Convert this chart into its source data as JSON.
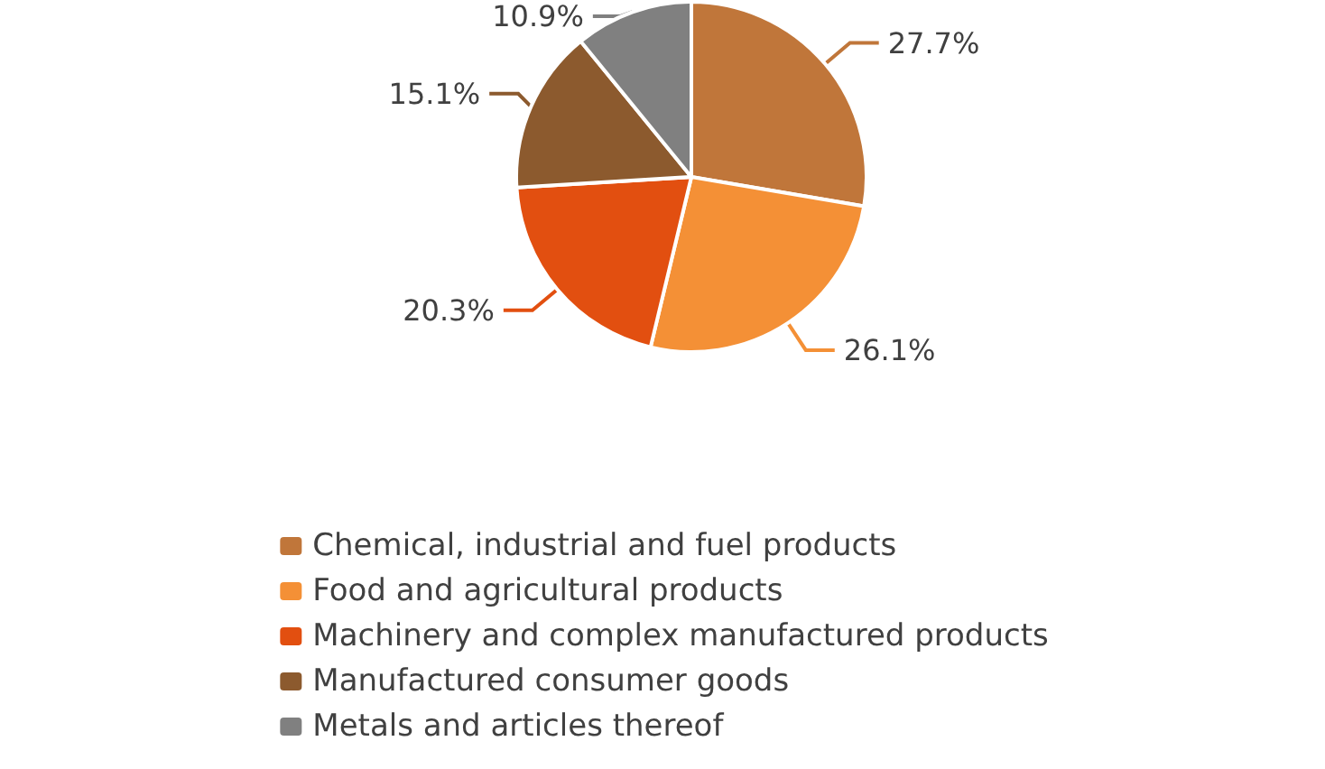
{
  "chart_data": {
    "type": "pie",
    "categories": [
      "Chemical, industrial and fuel products",
      "Food and agricultural products",
      "Machinery and complex manufactured products",
      "Manufactured consumer goods",
      "Metals and articles thereof"
    ],
    "values": [
      27.7,
      26.1,
      20.3,
      15.1,
      10.9
    ],
    "value_labels": [
      "27.7%",
      "26.1%",
      "20.3%",
      "15.1%",
      "10.9%"
    ],
    "colors": [
      "#c0763a",
      "#f49036",
      "#e24f10",
      "#8c5a2e",
      "#808080"
    ],
    "legend": "bottom"
  }
}
